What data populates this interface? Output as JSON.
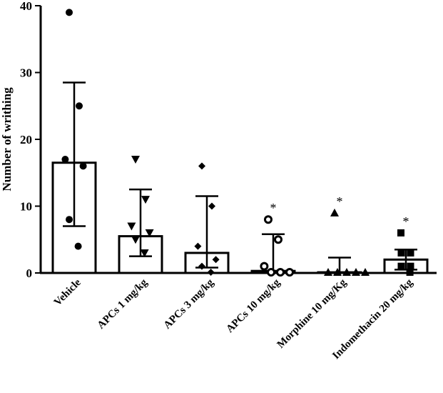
{
  "chart_data": {
    "type": "bar",
    "title": "",
    "xlabel": "",
    "ylabel": "Number of writhing",
    "ylim": [
      0,
      40
    ],
    "yticks": [
      0,
      10,
      20,
      30,
      40
    ],
    "grid": false,
    "categories": [
      "Vehicle",
      "APCs 1 mg/kg",
      "APCs 3 mg/kg",
      "APCs 10 mg/kg",
      "Morphine 10 mg/Kg",
      "Indomethacin 20 mg/kg"
    ],
    "values": [
      16.5,
      5.5,
      3.0,
      0.3,
      0.1,
      2.0
    ],
    "error_upper": [
      28.5,
      12.5,
      11.5,
      5.8,
      2.3,
      3.5
    ],
    "error_lower": [
      7.0,
      2.5,
      0.8,
      0.0,
      0.0,
      0.5
    ],
    "markers": [
      "circle",
      "triangle-down",
      "diamond",
      "open-circle",
      "triangle-up",
      "square"
    ],
    "points": [
      [
        39,
        25,
        17,
        16,
        8,
        4
      ],
      [
        17,
        11,
        7,
        6,
        5,
        3
      ],
      [
        16,
        10,
        4,
        2,
        1,
        0
      ],
      [
        8,
        5,
        1,
        0,
        0,
        0
      ],
      [
        9,
        0,
        0,
        0,
        0,
        0
      ],
      [
        6,
        3,
        3,
        1,
        1,
        0
      ]
    ],
    "significance": [
      "",
      "",
      "",
      "*",
      "*",
      "*"
    ]
  }
}
